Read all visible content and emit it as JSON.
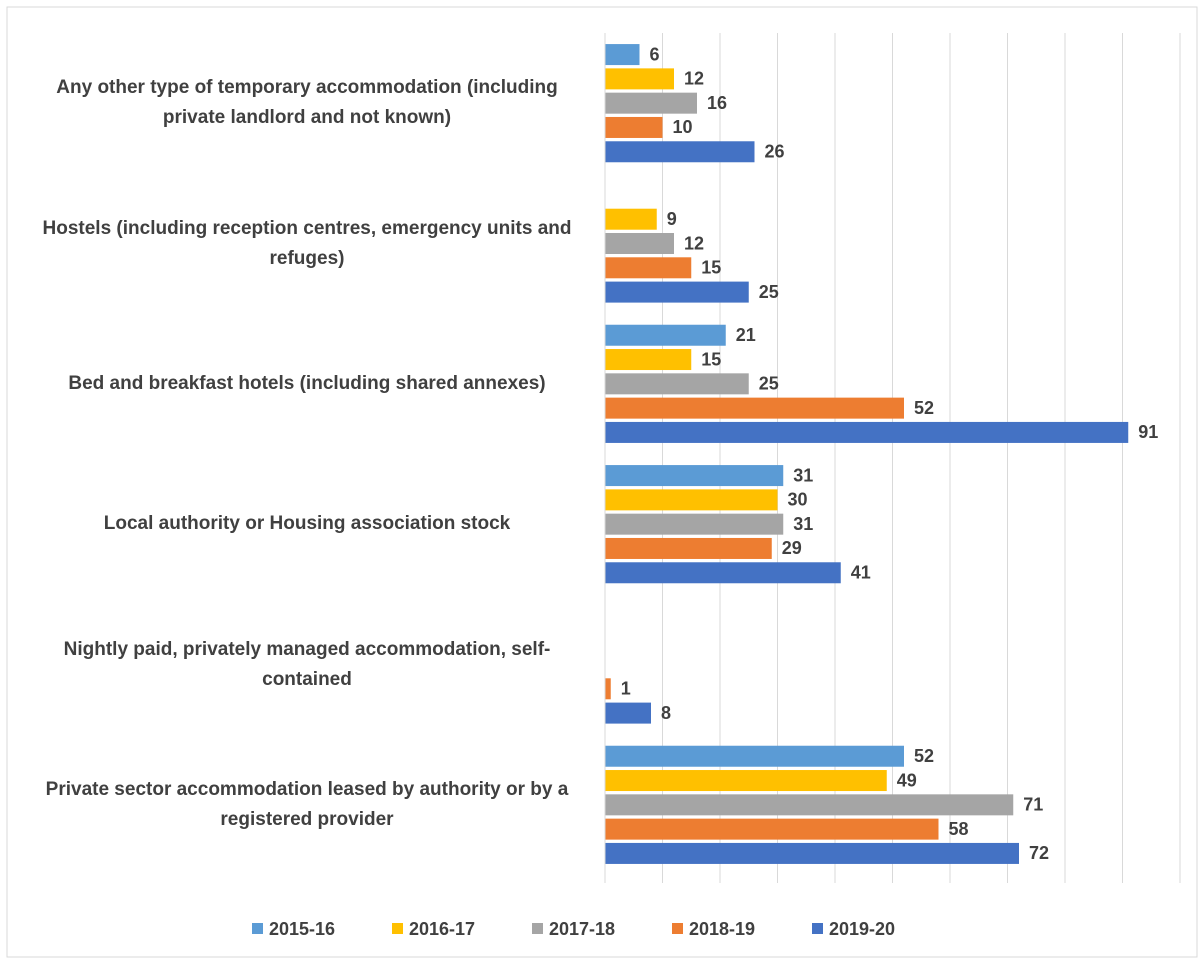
{
  "chart_data": {
    "type": "bar",
    "orientation": "horizontal",
    "categories": [
      "Any other type of temporary accommodation (including private landlord and not known)",
      "Hostels (including reception centres, emergency units and refuges)",
      "Bed and breakfast hotels (including shared annexes)",
      "Local authority or Housing association stock",
      "Nightly paid, privately managed accommodation, self-contained",
      "Private sector accommodation leased by authority or by a registered provider"
    ],
    "series": [
      {
        "name": "2015-16",
        "color": "#5b9bd5",
        "values": [
          6,
          null,
          21,
          31,
          null,
          52
        ]
      },
      {
        "name": "2016-17",
        "color": "#ffc000",
        "values": [
          12,
          9,
          15,
          30,
          null,
          49
        ]
      },
      {
        "name": "2017-18",
        "color": "#a5a5a5",
        "values": [
          16,
          12,
          25,
          31,
          null,
          71
        ]
      },
      {
        "name": "2018-19",
        "color": "#ed7d31",
        "values": [
          10,
          15,
          52,
          29,
          1,
          58
        ]
      },
      {
        "name": "2019-20",
        "color": "#4472c4",
        "values": [
          26,
          25,
          91,
          41,
          8,
          72
        ]
      }
    ],
    "xlim": [
      0,
      100
    ],
    "xticks": [
      0,
      10,
      20,
      30,
      40,
      50,
      60,
      70,
      80,
      90,
      100
    ],
    "grid": true,
    "legend": "bottom"
  }
}
